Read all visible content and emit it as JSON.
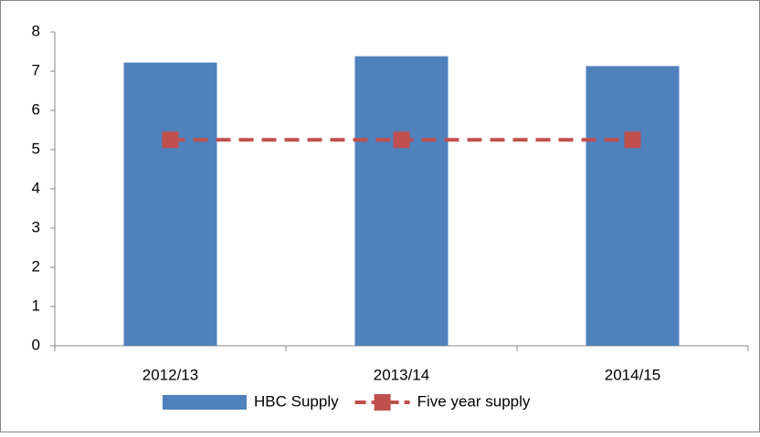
{
  "chart_data": {
    "type": "bar",
    "categories": [
      "2012/13",
      "2013/14",
      "2014/15"
    ],
    "series": [
      {
        "name": "HBC Supply",
        "type": "bar",
        "color": "#4f81bd",
        "values": [
          7.22,
          7.38,
          7.13
        ]
      },
      {
        "name": "Five year supply",
        "type": "line",
        "color": "#c0504d",
        "values": [
          5.25,
          5.25,
          5.25
        ]
      }
    ],
    "ylim": [
      0,
      8
    ],
    "yticks": [
      0,
      1,
      2,
      3,
      4,
      5,
      6,
      7,
      8
    ],
    "grid": false,
    "legend": "bottom"
  }
}
